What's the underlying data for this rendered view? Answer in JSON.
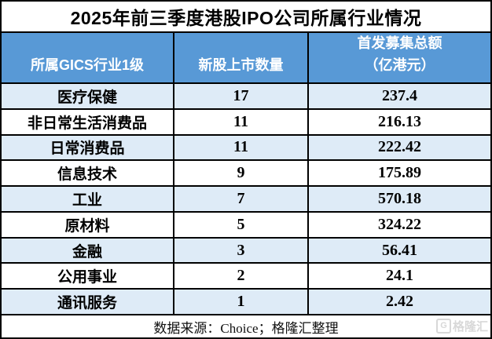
{
  "title": "2025年前三季度港股IPO公司所属行业情况",
  "table": {
    "columns": {
      "industry_label": "所属GICS行业1级",
      "count_label": "新股上市数量",
      "amount_label_line1": "首发募集总额",
      "amount_label_line2": "（亿港元）"
    },
    "rows": [
      {
        "industry": "医疗保健",
        "count": "17",
        "amount": "237.4"
      },
      {
        "industry": "非日常生活消费品",
        "count": "11",
        "amount": "216.13"
      },
      {
        "industry": "日常消费品",
        "count": "11",
        "amount": "222.42"
      },
      {
        "industry": "信息技术",
        "count": "9",
        "amount": "175.89"
      },
      {
        "industry": "工业",
        "count": "7",
        "amount": "570.18"
      },
      {
        "industry": "原材料",
        "count": "5",
        "amount": "324.22"
      },
      {
        "industry": "金融",
        "count": "3",
        "amount": "56.41"
      },
      {
        "industry": "公用事业",
        "count": "2",
        "amount": "24.1"
      },
      {
        "industry": "通讯服务",
        "count": "1",
        "amount": "2.42"
      }
    ]
  },
  "footer": {
    "source_text": "数据来源：Choice；格隆汇整理"
  },
  "watermark": {
    "logo_letter": "G",
    "brand": "格隆汇"
  },
  "colors": {
    "header_bg": "#5899D6",
    "band_bg": "#DEEBF7",
    "border": "#000000",
    "header_text": "#FFFFFF",
    "watermark": "#D8D8D8"
  },
  "chart_data": {
    "type": "table",
    "title": "2025年前三季度港股IPO公司所属行业情况",
    "columns": [
      "所属GICS行业1级",
      "新股上市数量",
      "首发募集总额（亿港元）"
    ],
    "rows": [
      [
        "医疗保健",
        17,
        237.4
      ],
      [
        "非日常生活消费品",
        11,
        216.13
      ],
      [
        "日常消费品",
        11,
        222.42
      ],
      [
        "信息技术",
        9,
        175.89
      ],
      [
        "工业",
        7,
        570.18
      ],
      [
        "原材料",
        5,
        324.22
      ],
      [
        "金融",
        3,
        56.41
      ],
      [
        "公用事业",
        2,
        24.1
      ],
      [
        "通讯服务",
        1,
        2.42
      ]
    ],
    "footer": "数据来源：Choice；格隆汇整理",
    "layout": {
      "banded_rows": true,
      "band_color": "#DEEBF7",
      "header_color": "#5899D6",
      "grid": true
    }
  }
}
